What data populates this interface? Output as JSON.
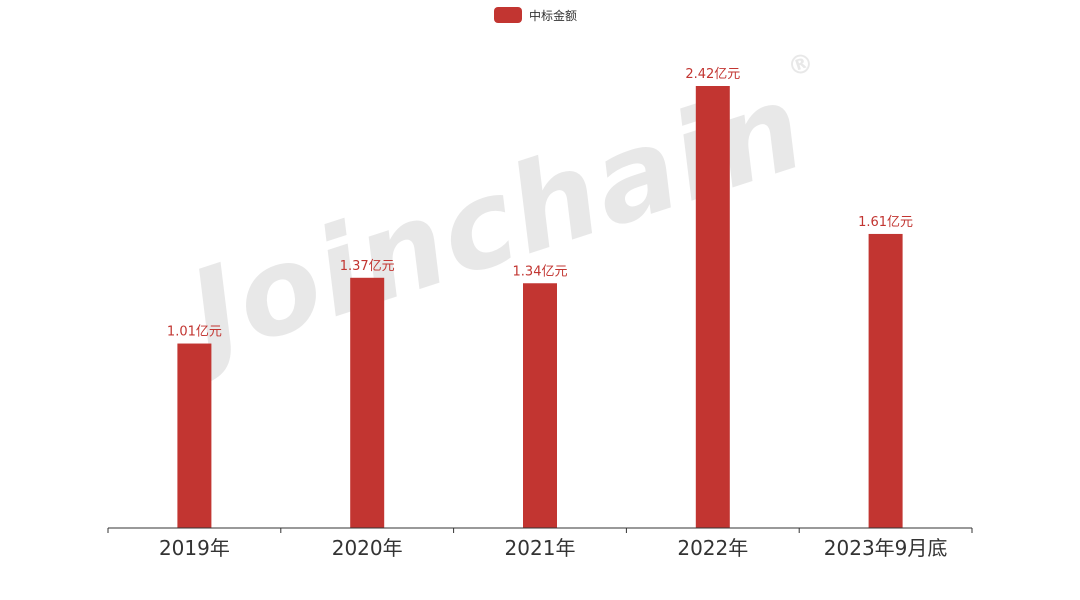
{
  "legend": {
    "label": "中标金额",
    "color": "#c23531"
  },
  "watermark": {
    "text": "Joinchain",
    "symbol": "®"
  },
  "chart_data": {
    "type": "bar",
    "categories": [
      "2019年",
      "2020年",
      "2021年",
      "2022年",
      "2023年9月底"
    ],
    "series": [
      {
        "name": "中标金额",
        "values": [
          1.01,
          1.37,
          1.34,
          2.42,
          1.61
        ],
        "labels": [
          "1.01亿元",
          "1.37亿元",
          "1.34亿元",
          "2.42亿元",
          "1.61亿元"
        ]
      }
    ],
    "ylim": [
      0,
      2.42
    ],
    "grid": false,
    "legend_position": "top-center",
    "bar_color": "#c23531",
    "label_color": "#c23531",
    "axis_color": "#333333"
  }
}
